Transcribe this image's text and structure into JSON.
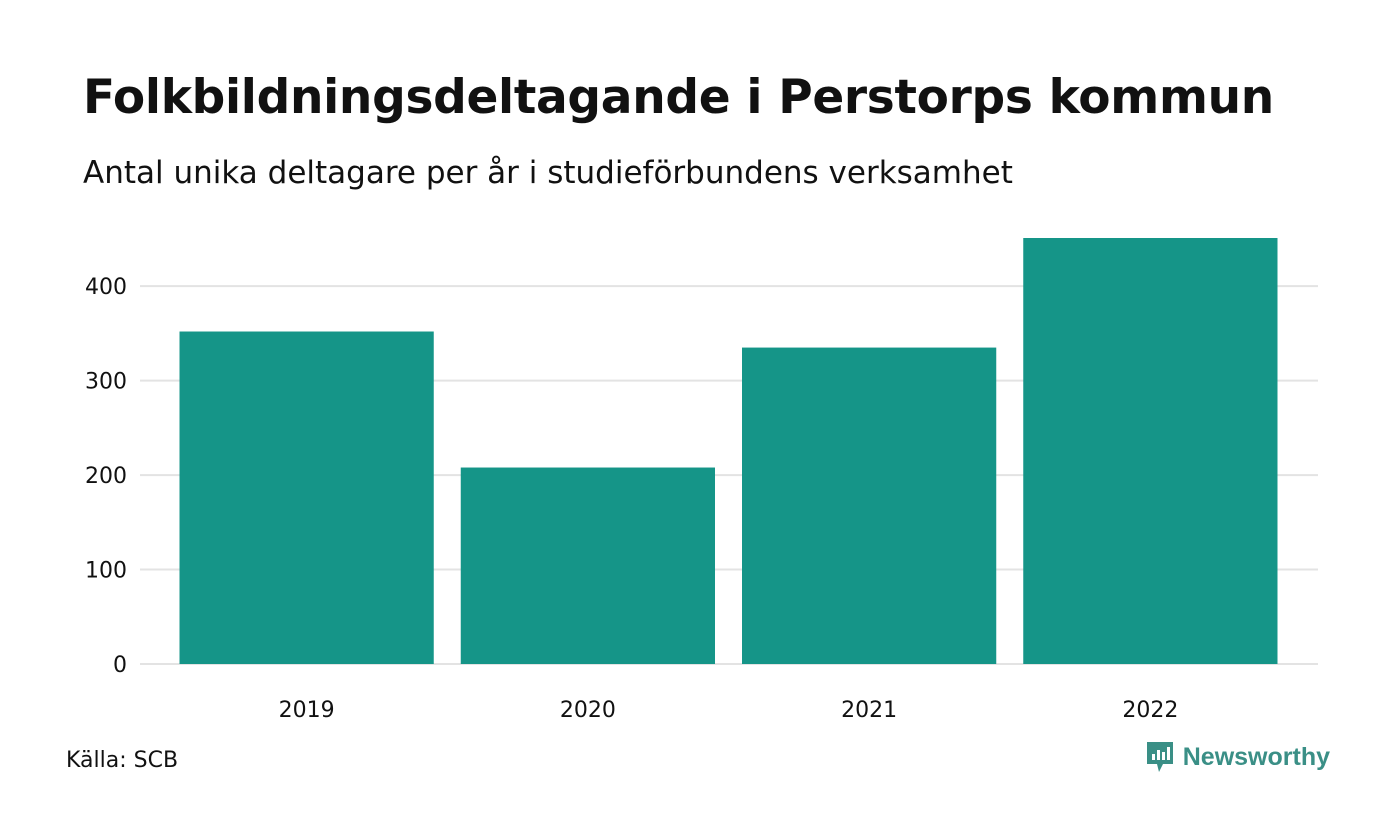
{
  "header": {
    "title": "Folkbildningsdeltagande i Perstorps kommun",
    "subtitle": "Antal unika deltagare per år i studieförbundens verksamhet"
  },
  "footer": {
    "source": "Källa: SCB",
    "brand": "Newsworthy",
    "brand_icon": "newsworthy-logo-icon"
  },
  "colors": {
    "bar": "#159588",
    "grid": "#e3e3e3",
    "brand": "#3a8f86"
  },
  "chart_data": {
    "type": "bar",
    "categories": [
      "2019",
      "2020",
      "2021",
      "2022"
    ],
    "values": [
      352,
      208,
      335,
      451
    ],
    "title": "Folkbildningsdeltagande i Perstorps kommun",
    "subtitle": "Antal unika deltagare per år i studieförbundens verksamhet",
    "xlabel": "",
    "ylabel": "",
    "ylim": [
      0,
      451
    ],
    "yticks": [
      0,
      100,
      200,
      300,
      400
    ],
    "grid": true,
    "legend": "none"
  }
}
